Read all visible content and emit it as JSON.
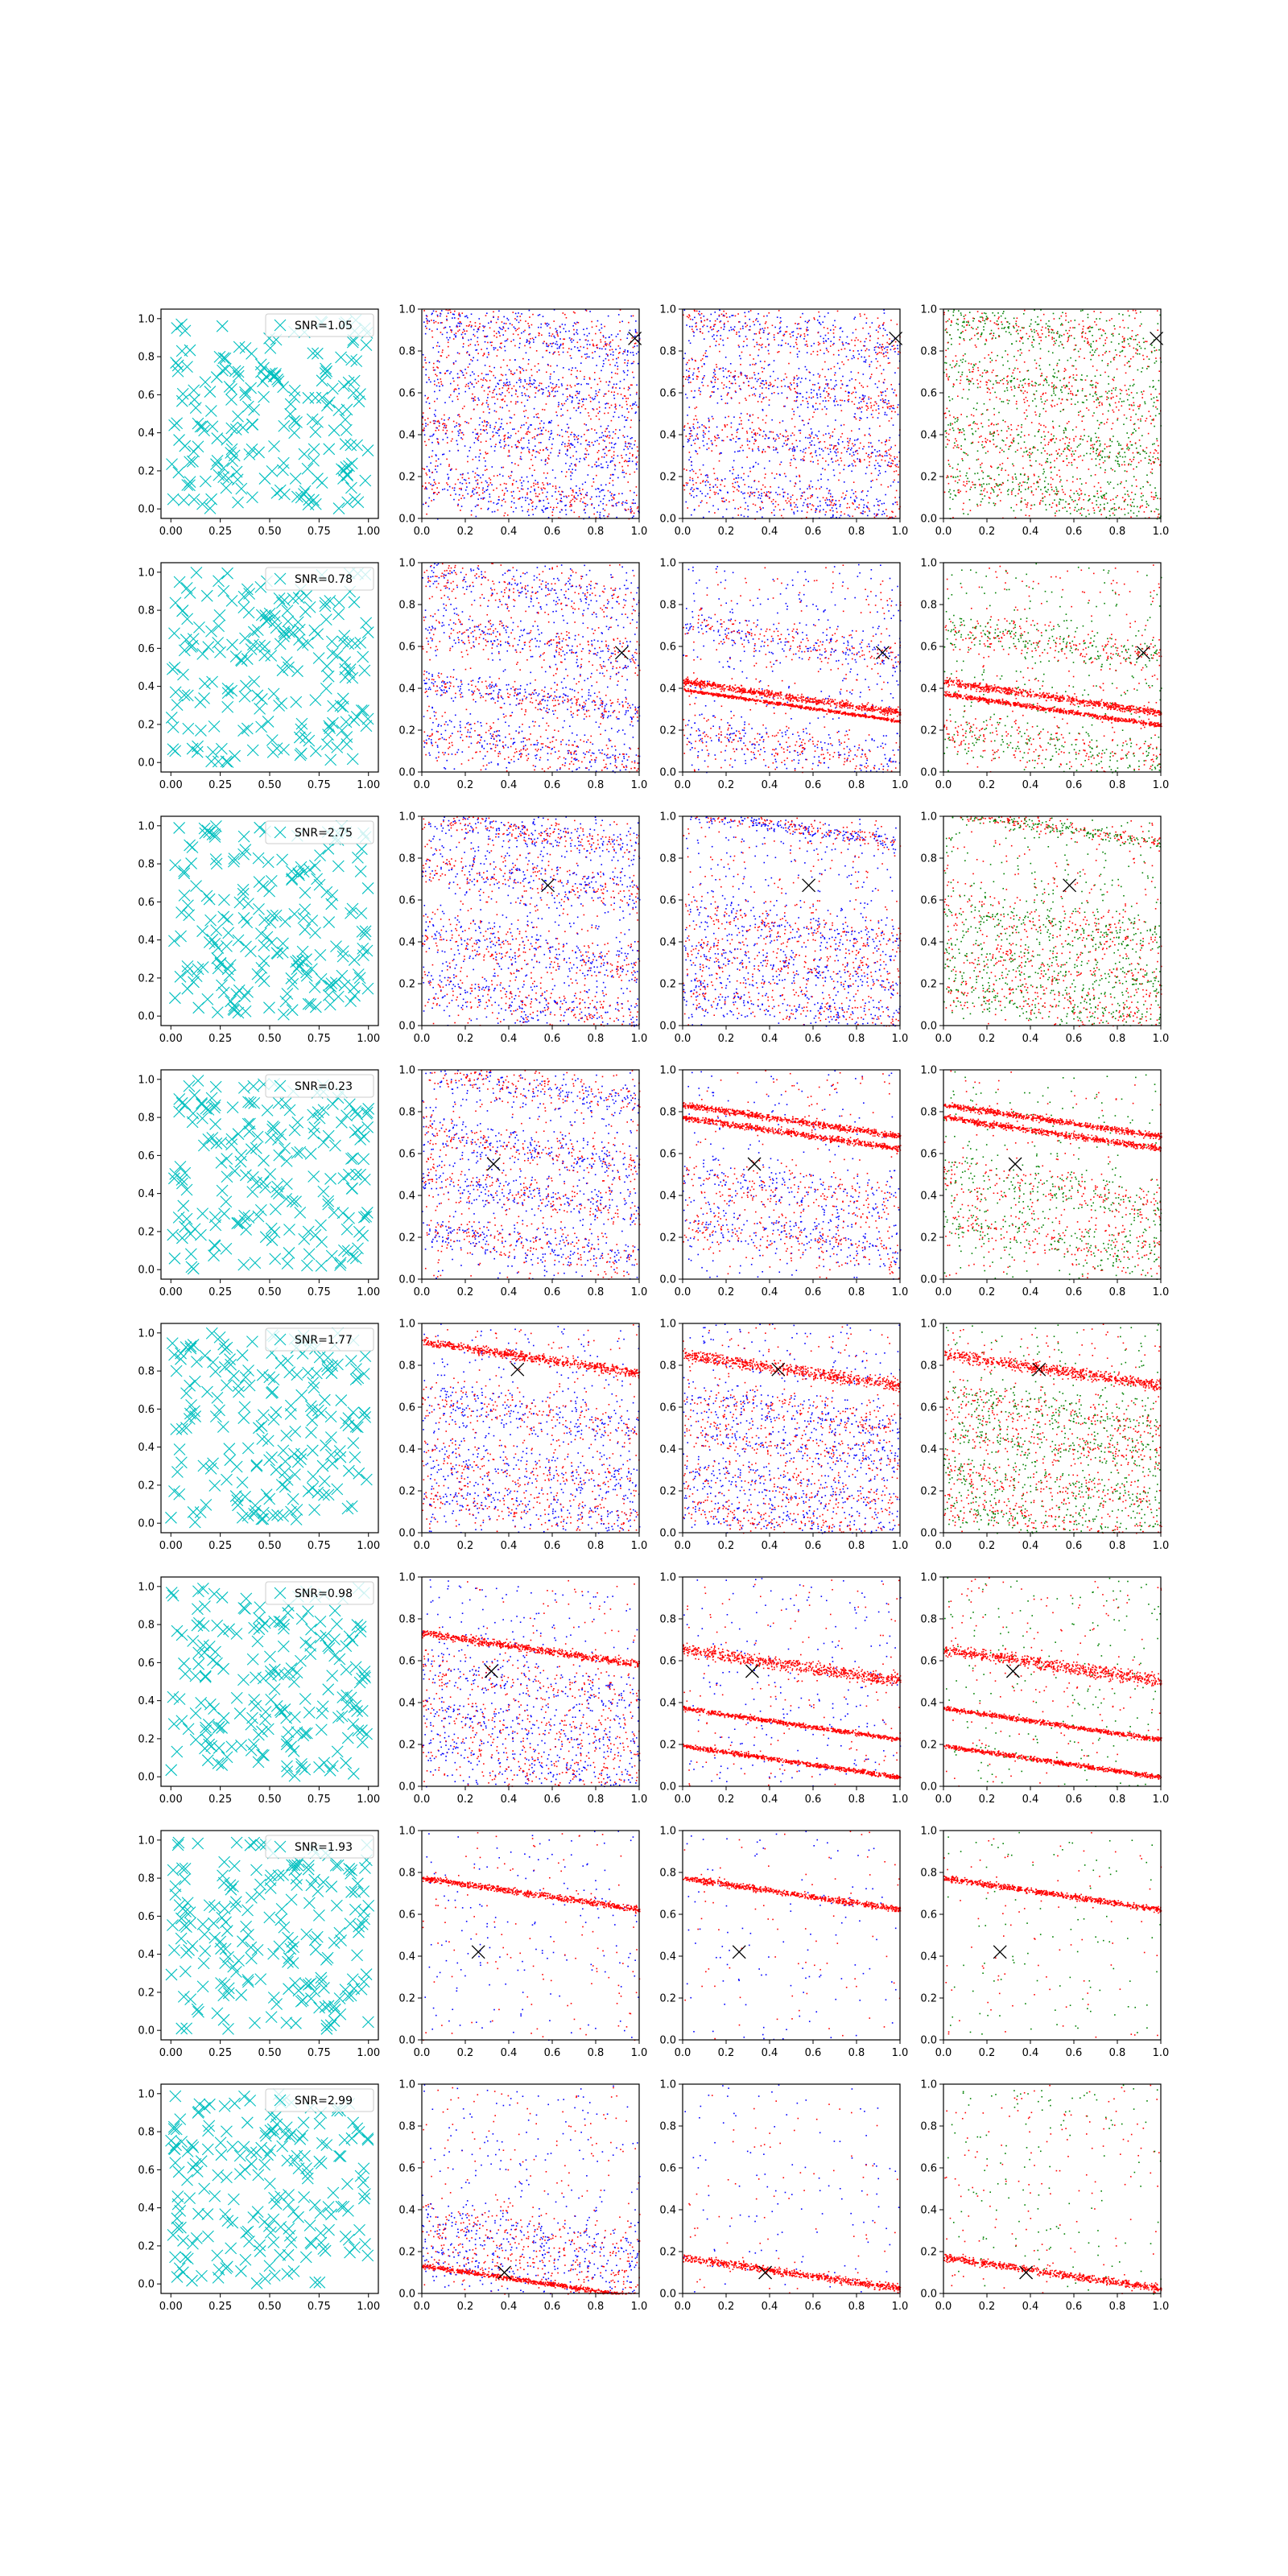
{
  "figure": {
    "background": "#ffffff",
    "rows": 8,
    "cols": 4
  },
  "colors": {
    "cyan_marker": "#00bfbf",
    "red": "#ff0000",
    "blue": "#0000ff",
    "green": "#008000",
    "black_marker": "#000000",
    "axes": "#000000"
  },
  "chart_data": [
    {
      "type": "scatter",
      "panel_kind": "random-markers",
      "marker": "x",
      "color": "#00bfbf",
      "xlim": [
        -0.05,
        1.05
      ],
      "ylim": [
        -0.05,
        1.05
      ],
      "xticks": [
        "0.00",
        "0.25",
        "0.50",
        "0.75",
        "1.00"
      ],
      "yticks": [
        "0.0",
        "0.2",
        "0.4",
        "0.6",
        "0.8",
        "1.0"
      ],
      "legend": "upper right",
      "grid": false,
      "rows": [
        {
          "series": [
            {
              "name": "SNR=1.05"
            }
          ],
          "points_shown": 200
        },
        {
          "series": [
            {
              "name": "SNR=0.78"
            }
          ],
          "points_shown": 200
        },
        {
          "series": [
            {
              "name": "SNR=2.75"
            }
          ],
          "points_shown": 200
        },
        {
          "series": [
            {
              "name": "SNR=0.23"
            }
          ],
          "points_shown": 200
        },
        {
          "series": [
            {
              "name": "SNR=1.77"
            }
          ],
          "points_shown": 200
        },
        {
          "series": [
            {
              "name": "SNR=0.98"
            }
          ],
          "points_shown": 200
        },
        {
          "series": [
            {
              "name": "SNR=1.93"
            }
          ],
          "points_shown": 200
        },
        {
          "series": [
            {
              "name": "SNR=2.99"
            }
          ],
          "points_shown": 200
        }
      ]
    },
    {
      "type": "scatter",
      "panel_kind": "density-stripes",
      "xlim": [
        0,
        1
      ],
      "ylim": [
        0,
        1
      ],
      "xticks": [
        "0.0",
        "0.2",
        "0.4",
        "0.6",
        "0.8",
        "1.0"
      ],
      "yticks": [
        "0.0",
        "0.2",
        "0.4",
        "0.6",
        "0.8",
        "1.0"
      ],
      "grid": false,
      "rows": [
        {
          "marker": [
            0.98,
            0.86
          ],
          "panels": [
            {
              "colors": [
                "#ff0000",
                "#0000ff"
              ],
              "bands": [
                [
                  0.88,
                  0.32
                ],
                [
                  0.62,
                  0.3
                ],
                [
                  0.38,
                  0.3
                ],
                [
                  0.12,
                  0.3
                ]
              ],
              "background": 0.9
            },
            {
              "colors": [
                "#ff0000",
                "#0000ff"
              ],
              "bands": [
                [
                  0.88,
                  0.25
                ],
                [
                  0.62,
                  0.25
                ],
                [
                  0.36,
                  0.25
                ],
                [
                  0.1,
                  0.25
                ]
              ],
              "background": 0.7
            },
            {
              "colors": [
                "#ff0000",
                "#008000"
              ],
              "bands": [
                [
                  0.88,
                  0.28
                ],
                [
                  0.62,
                  0.28
                ],
                [
                  0.36,
                  0.28
                ],
                [
                  0.12,
                  0.28
                ]
              ],
              "background": 0.7
            }
          ]
        },
        {
          "marker": [
            0.92,
            0.57
          ],
          "panels": [
            {
              "colors": [
                "#ff0000",
                "#0000ff"
              ],
              "bands": [
                [
                  0.88,
                  0.3
                ],
                [
                  0.62,
                  0.3
                ],
                [
                  0.36,
                  0.18
                ],
                [
                  0.12,
                  0.3
                ]
              ],
              "background": 0.6
            },
            {
              "colors": [
                "#ff0000",
                "#0000ff"
              ],
              "bands": [
                [
                  0.36,
                  0.05
                ],
                [
                  0.32,
                  0.02
                ],
                [
                  0.62,
                  0.25
                ],
                [
                  0.12,
                  0.3
                ]
              ],
              "background": 0.5
            },
            {
              "colors": [
                "#ff0000",
                "#008000"
              ],
              "bands": [
                [
                  0.36,
                  0.05
                ],
                [
                  0.3,
                  0.03
                ],
                [
                  0.62,
                  0.25
                ],
                [
                  0.12,
                  0.3
                ]
              ],
              "background": 0.5
            }
          ]
        },
        {
          "marker": [
            0.58,
            0.67
          ],
          "panels": [
            {
              "colors": [
                "#ff0000",
                "#0000ff"
              ],
              "bands": [
                [
                  0.92,
                  0.2
                ],
                [
                  0.7,
                  0.3
                ],
                [
                  0.36,
                  0.3
                ],
                [
                  0.12,
                  0.3
                ]
              ],
              "background": 0.7
            },
            {
              "colors": [
                "#ff0000",
                "#0000ff"
              ],
              "bands": [
                [
                  0.95,
                  0.1
                ],
                [
                  0.47,
                  0.3
                ],
                [
                  0.28,
                  0.3
                ],
                [
                  0.1,
                  0.3
                ]
              ],
              "background": 0.6
            },
            {
              "colors": [
                "#ff0000",
                "#008000"
              ],
              "bands": [
                [
                  0.95,
                  0.1
                ],
                [
                  0.47,
                  0.3
                ],
                [
                  0.28,
                  0.3
                ],
                [
                  0.1,
                  0.3
                ]
              ],
              "background": 0.6
            }
          ]
        },
        {
          "marker": [
            0.33,
            0.55
          ],
          "panels": [
            {
              "colors": [
                "#ff0000",
                "#0000ff"
              ],
              "bands": [
                [
                  0.92,
                  0.25
                ],
                [
                  0.62,
                  0.25
                ],
                [
                  0.4,
                  0.25
                ],
                [
                  0.16,
                  0.25
                ]
              ],
              "background": 0.6
            },
            {
              "colors": [
                "#ff0000",
                "#0000ff"
              ],
              "bands": [
                [
                  0.76,
                  0.04
                ],
                [
                  0.7,
                  0.04
                ],
                [
                  0.42,
                  0.3
                ],
                [
                  0.2,
                  0.3
                ]
              ],
              "background": 0.4
            },
            {
              "colors": [
                "#ff0000",
                "#008000"
              ],
              "bands": [
                [
                  0.76,
                  0.04
                ],
                [
                  0.7,
                  0.04
                ],
                [
                  0.42,
                  0.3
                ],
                [
                  0.2,
                  0.3
                ]
              ],
              "background": 0.4
            }
          ]
        },
        {
          "marker": [
            0.44,
            0.78
          ],
          "panels": [
            {
              "colors": [
                "#ff0000",
                "#0000ff"
              ],
              "bands": [
                [
                  0.84,
                  0.06
                ],
                [
                  0.56,
                  0.3
                ],
                [
                  0.3,
                  0.3
                ],
                [
                  0.12,
                  0.3
                ]
              ],
              "background": 0.5
            },
            {
              "colors": [
                "#ff0000",
                "#0000ff"
              ],
              "bands": [
                [
                  0.78,
                  0.08
                ],
                [
                  0.58,
                  0.25
                ],
                [
                  0.42,
                  0.25
                ],
                [
                  0.22,
                  0.25
                ],
                [
                  0.05,
                  0.25
                ]
              ],
              "background": 0.5
            },
            {
              "colors": [
                "#ff0000",
                "#008000"
              ],
              "bands": [
                [
                  0.78,
                  0.08
                ],
                [
                  0.58,
                  0.25
                ],
                [
                  0.42,
                  0.25
                ],
                [
                  0.22,
                  0.25
                ],
                [
                  0.05,
                  0.25
                ]
              ],
              "background": 0.5
            }
          ]
        },
        {
          "marker": [
            0.32,
            0.55
          ],
          "panels": [
            {
              "colors": [
                "#ff0000",
                "#0000ff"
              ],
              "bands": [
                [
                  0.66,
                  0.05
                ],
                [
                  0.5,
                  0.3
                ],
                [
                  0.28,
                  0.3
                ],
                [
                  0.1,
                  0.3
                ]
              ],
              "background": 0.4
            },
            {
              "colors": [
                "#ff0000",
                "#0000ff"
              ],
              "bands": [
                [
                  0.58,
                  0.08
                ],
                [
                  0.3,
                  0.03
                ],
                [
                  0.12,
                  0.03
                ]
              ],
              "background": 0.4
            },
            {
              "colors": [
                "#ff0000",
                "#008000"
              ],
              "bands": [
                [
                  0.58,
                  0.08
                ],
                [
                  0.3,
                  0.03
                ],
                [
                  0.12,
                  0.03
                ]
              ],
              "background": 0.4
            }
          ]
        },
        {
          "marker": [
            0.26,
            0.42
          ],
          "panels": [
            {
              "colors": [
                "#ff0000",
                "#0000ff"
              ],
              "bands": [
                [
                  0.7,
                  0.04
                ]
              ],
              "background": 0.3
            },
            {
              "colors": [
                "#ff0000",
                "#0000ff"
              ],
              "bands": [
                [
                  0.7,
                  0.04
                ]
              ],
              "background": 0.2
            },
            {
              "colors": [
                "#ff0000",
                "#008000"
              ],
              "bands": [
                [
                  0.7,
                  0.04
                ]
              ],
              "background": 0.2
            }
          ]
        },
        {
          "marker": [
            0.38,
            0.1
          ],
          "panels": [
            {
              "colors": [
                "#ff0000",
                "#0000ff"
              ],
              "bands": [
                [
                  0.28,
                  0.3
                ],
                [
                  0.12,
                  0.3
                ],
                [
                  0.06,
                  0.03
                ]
              ],
              "background": 0.4
            },
            {
              "colors": [
                "#ff0000",
                "#0000ff"
              ],
              "bands": [
                [
                  0.1,
                  0.05
                ]
              ],
              "background": 0.2
            },
            {
              "colors": [
                "#ff0000",
                "#008000"
              ],
              "bands": [
                [
                  0.1,
                  0.05
                ]
              ],
              "background": 0.3
            }
          ]
        }
      ]
    }
  ]
}
